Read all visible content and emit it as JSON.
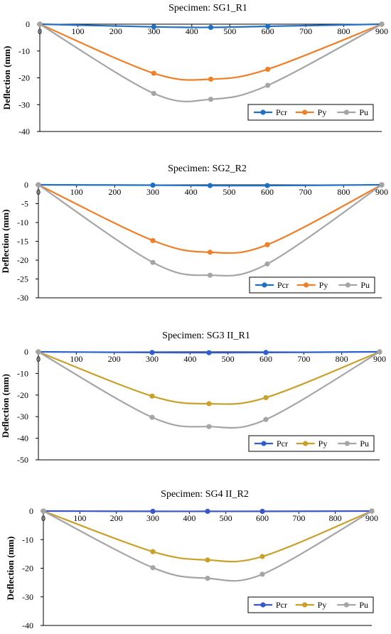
{
  "chart_data": [
    {
      "type": "line",
      "title": "Specimen: SG1_R1",
      "ylabel": "Deflection (mm)",
      "xlim": [
        0,
        900
      ],
      "ylim": [
        -40,
        0
      ],
      "xticks": [
        0,
        100,
        200,
        300,
        400,
        500,
        600,
        700,
        800,
        900
      ],
      "yticks": [
        0,
        -10,
        -20,
        -30,
        -40
      ],
      "legend_position": "bottom-right",
      "x": [
        0,
        300,
        450,
        600,
        900
      ],
      "series": [
        {
          "name": "Pcr",
          "color": "#1f6fc4",
          "values": [
            0,
            -1,
            -1.2,
            -0.8,
            0
          ]
        },
        {
          "name": "Py",
          "color": "#f07f2a",
          "values": [
            0,
            -18.3,
            -20.5,
            -16.8,
            0
          ]
        },
        {
          "name": "Pu",
          "color": "#a5a5a5",
          "values": [
            0,
            -25.8,
            -28,
            -22.8,
            0
          ]
        }
      ]
    },
    {
      "type": "line",
      "title": "Specimen: SG2_R2",
      "ylabel": "Deflection (mm)",
      "xlim": [
        0,
        900
      ],
      "ylim": [
        -30,
        0
      ],
      "xticks": [
        0,
        100,
        200,
        300,
        400,
        500,
        600,
        700,
        800,
        900
      ],
      "yticks": [
        0,
        -5,
        -10,
        -15,
        -20,
        -25,
        -30
      ],
      "legend_position": "bottom-right",
      "x": [
        0,
        300,
        450,
        600,
        900
      ],
      "series": [
        {
          "name": "Pcr",
          "color": "#1f6fc4",
          "values": [
            0,
            -0.1,
            -0.2,
            -0.2,
            0
          ]
        },
        {
          "name": "Py",
          "color": "#f07f2a",
          "values": [
            0,
            -14.8,
            -17.9,
            -15.9,
            0
          ]
        },
        {
          "name": "Pu",
          "color": "#a5a5a5",
          "values": [
            0,
            -20.6,
            -24,
            -21,
            0
          ]
        }
      ]
    },
    {
      "type": "line",
      "title": "Specimen:  SG3 II_R1",
      "ylabel": "Deflection (mm)",
      "xlim": [
        0,
        900
      ],
      "ylim": [
        -50,
        0
      ],
      "xticks": [
        0,
        100,
        200,
        300,
        400,
        500,
        600,
        700,
        800,
        900
      ],
      "yticks": [
        0,
        -10,
        -20,
        -30,
        -40,
        -50
      ],
      "legend_position": "bottom-right",
      "x": [
        0,
        300,
        450,
        600,
        900
      ],
      "series": [
        {
          "name": "Pcr",
          "color": "#2e5fd1",
          "values": [
            0,
            -0.3,
            -0.4,
            -0.3,
            0
          ]
        },
        {
          "name": "Py",
          "color": "#c9a02a",
          "values": [
            0,
            -20.5,
            -24,
            -21.2,
            0
          ]
        },
        {
          "name": "Pu",
          "color": "#a5a5a5",
          "values": [
            0,
            -30.3,
            -34.6,
            -31.3,
            0
          ]
        }
      ]
    },
    {
      "type": "line",
      "title": "Specimen: SG4 II_R2",
      "ylabel": "Deflection (mm)",
      "xlim": [
        0,
        900
      ],
      "ylim": [
        -40,
        0
      ],
      "xticks": [
        0,
        100,
        200,
        300,
        400,
        500,
        600,
        700,
        800,
        900
      ],
      "yticks": [
        0,
        -10,
        -20,
        -30,
        -40
      ],
      "legend_position": "bottom-right",
      "x": [
        0,
        300,
        450,
        600,
        900
      ],
      "series": [
        {
          "name": "Pcr",
          "color": "#3a56c8",
          "values": [
            0,
            -0.1,
            -0.1,
            -0.1,
            0
          ]
        },
        {
          "name": "Py",
          "color": "#c9a02a",
          "values": [
            0,
            -14.2,
            -17.1,
            -15.9,
            0
          ]
        },
        {
          "name": "Pu",
          "color": "#a5a5a5",
          "values": [
            0,
            -19.8,
            -23.5,
            -22.1,
            0
          ]
        }
      ]
    }
  ]
}
